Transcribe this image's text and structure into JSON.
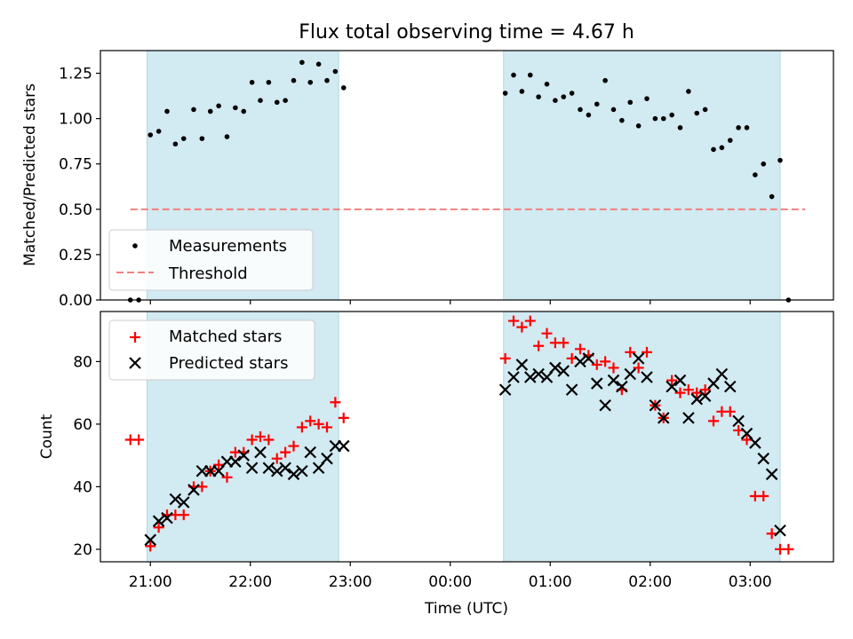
{
  "title": "Flux total observing time = 4.67 h",
  "x_axis": {
    "label": "Time (UTC)",
    "ticks": [
      {
        "value": 1260,
        "label": "21:00"
      },
      {
        "value": 1320,
        "label": "22:00"
      },
      {
        "value": 1380,
        "label": "23:00"
      },
      {
        "value": 1440,
        "label": "00:00"
      },
      {
        "value": 1500,
        "label": "01:00"
      },
      {
        "value": 1560,
        "label": "02:00"
      },
      {
        "value": 1620,
        "label": "03:00"
      }
    ]
  },
  "colors": {
    "band": "#add8e6",
    "measurements": "#000000",
    "threshold": "#f08080",
    "matched": "#ff0000",
    "predicted": "#000000"
  },
  "chart_data": [
    {
      "type": "scatter",
      "title": "Flux total observing time = 4.67 h",
      "xlabel": "",
      "ylabel": "Matched/Predicted stars",
      "xlim": [
        "20:30",
        "03:50"
      ],
      "ylim": [
        0,
        1.375
      ],
      "yticks": [
        "0.00",
        "0.25",
        "0.50",
        "0.75",
        "1.00",
        "1.25"
      ],
      "grid": false,
      "legend_position": "lower-left",
      "legend": [
        "Measurements",
        "Threshold"
      ],
      "shaded_intervals": [
        [
          "20:58",
          "22:53"
        ],
        [
          "00:32",
          "03:18"
        ]
      ],
      "threshold": {
        "name": "Threshold",
        "value": 0.5,
        "x_range": [
          "20:48",
          "03:33"
        ]
      },
      "series": [
        {
          "name": "Measurements",
          "points": [
            [
              "20:48",
              0.0
            ],
            [
              "20:53",
              0.0
            ],
            [
              "21:00",
              0.91
            ],
            [
              "21:05",
              0.93
            ],
            [
              "21:10",
              1.04
            ],
            [
              "21:15",
              0.86
            ],
            [
              "21:20",
              0.89
            ],
            [
              "21:26",
              1.05
            ],
            [
              "21:31",
              0.89
            ],
            [
              "21:36",
              1.04
            ],
            [
              "21:41",
              1.07
            ],
            [
              "21:46",
              0.9
            ],
            [
              "21:51",
              1.06
            ],
            [
              "21:56",
              1.04
            ],
            [
              "22:01",
              1.2
            ],
            [
              "22:06",
              1.1
            ],
            [
              "22:11",
              1.2
            ],
            [
              "22:16",
              1.09
            ],
            [
              "22:21",
              1.1
            ],
            [
              "22:26",
              1.21
            ],
            [
              "22:31",
              1.31
            ],
            [
              "22:36",
              1.2
            ],
            [
              "22:41",
              1.3
            ],
            [
              "22:46",
              1.21
            ],
            [
              "22:51",
              1.26
            ],
            [
              "22:56",
              1.17
            ],
            [
              "00:33",
              1.14
            ],
            [
              "00:38",
              1.24
            ],
            [
              "00:43",
              1.15
            ],
            [
              "00:48",
              1.24
            ],
            [
              "00:53",
              1.12
            ],
            [
              "00:58",
              1.19
            ],
            [
              "01:03",
              1.1
            ],
            [
              "01:08",
              1.12
            ],
            [
              "01:13",
              1.14
            ],
            [
              "01:18",
              1.05
            ],
            [
              "01:23",
              1.02
            ],
            [
              "01:28",
              1.08
            ],
            [
              "01:33",
              1.21
            ],
            [
              "01:38",
              1.05
            ],
            [
              "01:43",
              0.99
            ],
            [
              "01:48",
              1.09
            ],
            [
              "01:53",
              0.96
            ],
            [
              "01:58",
              1.11
            ],
            [
              "02:03",
              1.0
            ],
            [
              "02:08",
              1.0
            ],
            [
              "02:13",
              1.02
            ],
            [
              "02:18",
              0.95
            ],
            [
              "02:23",
              1.15
            ],
            [
              "02:28",
              1.03
            ],
            [
              "02:33",
              1.05
            ],
            [
              "02:38",
              0.83
            ],
            [
              "02:43",
              0.84
            ],
            [
              "02:48",
              0.88
            ],
            [
              "02:53",
              0.95
            ],
            [
              "02:58",
              0.95
            ],
            [
              "03:03",
              0.69
            ],
            [
              "03:08",
              0.75
            ],
            [
              "03:13",
              0.57
            ],
            [
              "03:18",
              0.77
            ],
            [
              "03:23",
              0.0
            ]
          ]
        }
      ]
    },
    {
      "type": "scatter",
      "xlabel": "Time (UTC)",
      "ylabel": "Count",
      "xlim": [
        "20:30",
        "03:50"
      ],
      "ylim": [
        16,
        96
      ],
      "yticks": [
        "20",
        "40",
        "60",
        "80"
      ],
      "grid": false,
      "legend_position": "upper-left",
      "legend": [
        "Matched stars",
        "Predicted stars"
      ],
      "shaded_intervals": [
        [
          "20:58",
          "22:53"
        ],
        [
          "00:32",
          "03:18"
        ]
      ],
      "series": [
        {
          "name": "Matched stars",
          "points": [
            [
              "20:48",
              55
            ],
            [
              "20:53",
              55
            ],
            [
              "21:00",
              21
            ],
            [
              "21:05",
              27
            ],
            [
              "21:10",
              31
            ],
            [
              "21:15",
              31
            ],
            [
              "21:20",
              31
            ],
            [
              "21:26",
              40
            ],
            [
              "21:31",
              40
            ],
            [
              "21:36",
              45
            ],
            [
              "21:41",
              47
            ],
            [
              "21:46",
              43
            ],
            [
              "21:51",
              51
            ],
            [
              "21:56",
              51
            ],
            [
              "22:01",
              55
            ],
            [
              "22:06",
              56
            ],
            [
              "22:11",
              55
            ],
            [
              "22:16",
              49
            ],
            [
              "22:21",
              51
            ],
            [
              "22:26",
              53
            ],
            [
              "22:31",
              59
            ],
            [
              "22:36",
              61
            ],
            [
              "22:41",
              60
            ],
            [
              "22:46",
              59
            ],
            [
              "22:51",
              67
            ],
            [
              "22:56",
              62
            ],
            [
              "00:33",
              81
            ],
            [
              "00:38",
              93
            ],
            [
              "00:43",
              91
            ],
            [
              "00:48",
              93
            ],
            [
              "00:53",
              85
            ],
            [
              "00:58",
              89
            ],
            [
              "01:03",
              86
            ],
            [
              "01:08",
              86
            ],
            [
              "01:13",
              81
            ],
            [
              "01:18",
              84
            ],
            [
              "01:23",
              82
            ],
            [
              "01:28",
              79
            ],
            [
              "01:33",
              80
            ],
            [
              "01:38",
              78
            ],
            [
              "01:43",
              71
            ],
            [
              "01:48",
              83
            ],
            [
              "01:53",
              78
            ],
            [
              "01:58",
              83
            ],
            [
              "02:03",
              66
            ],
            [
              "02:08",
              62
            ],
            [
              "02:13",
              74
            ],
            [
              "02:18",
              70
            ],
            [
              "02:23",
              71
            ],
            [
              "02:28",
              70
            ],
            [
              "02:33",
              71
            ],
            [
              "02:38",
              61
            ],
            [
              "02:43",
              64
            ],
            [
              "02:48",
              64
            ],
            [
              "02:53",
              58
            ],
            [
              "02:58",
              55
            ],
            [
              "03:03",
              37
            ],
            [
              "03:08",
              37
            ],
            [
              "03:13",
              25
            ],
            [
              "03:18",
              20
            ],
            [
              "03:23",
              20
            ]
          ]
        },
        {
          "name": "Predicted stars",
          "points": [
            [
              "21:00",
              23
            ],
            [
              "21:05",
              29
            ],
            [
              "21:10",
              30
            ],
            [
              "21:15",
              36
            ],
            [
              "21:20",
              35
            ],
            [
              "21:26",
              39
            ],
            [
              "21:31",
              45
            ],
            [
              "21:36",
              45
            ],
            [
              "21:41",
              45
            ],
            [
              "21:46",
              48
            ],
            [
              "21:51",
              48
            ],
            [
              "21:56",
              50
            ],
            [
              "22:01",
              46
            ],
            [
              "22:06",
              51
            ],
            [
              "22:11",
              46
            ],
            [
              "22:16",
              45
            ],
            [
              "22:21",
              46
            ],
            [
              "22:26",
              44
            ],
            [
              "22:31",
              45
            ],
            [
              "22:36",
              51
            ],
            [
              "22:41",
              46
            ],
            [
              "22:46",
              49
            ],
            [
              "22:51",
              53
            ],
            [
              "22:56",
              53
            ],
            [
              "00:33",
              71
            ],
            [
              "00:38",
              75
            ],
            [
              "00:43",
              79
            ],
            [
              "00:48",
              75
            ],
            [
              "00:53",
              76
            ],
            [
              "00:58",
              75
            ],
            [
              "01:03",
              78
            ],
            [
              "01:08",
              77
            ],
            [
              "01:13",
              71
            ],
            [
              "01:18",
              80
            ],
            [
              "01:23",
              81
            ],
            [
              "01:28",
              73
            ],
            [
              "01:33",
              66
            ],
            [
              "01:38",
              74
            ],
            [
              "01:43",
              72
            ],
            [
              "01:48",
              76
            ],
            [
              "01:53",
              81
            ],
            [
              "01:58",
              75
            ],
            [
              "02:03",
              66
            ],
            [
              "02:08",
              62
            ],
            [
              "02:13",
              72
            ],
            [
              "02:18",
              74
            ],
            [
              "02:23",
              62
            ],
            [
              "02:28",
              68
            ],
            [
              "02:33",
              69
            ],
            [
              "02:38",
              73
            ],
            [
              "02:43",
              76
            ],
            [
              "02:48",
              72
            ],
            [
              "02:53",
              61
            ],
            [
              "02:58",
              57
            ],
            [
              "03:03",
              54
            ],
            [
              "03:08",
              49
            ],
            [
              "03:13",
              44
            ],
            [
              "03:18",
              26
            ]
          ]
        }
      ]
    }
  ]
}
